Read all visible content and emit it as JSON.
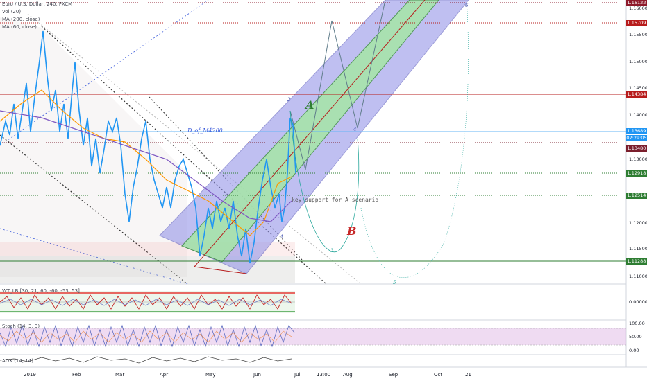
{
  "symbol": {
    "title": "Euro / U.S. Dollar, 240, FXCM",
    "indicators": [
      "Vol (20)",
      "MA (200, close)",
      "MA (60, close)"
    ]
  },
  "panes": {
    "wt": "WT_LB [30, 21, 60, -60, -53, 53]",
    "stoch": "Stoch (14, 3, 3)",
    "adx": "ADX (14, 14)"
  },
  "annotations": {
    "d_of_m": "D_of_M4200",
    "key_support": "key support for A scenario",
    "label_a": "A",
    "label_b": "B",
    "wave_2": "2",
    "wave_4a": "4",
    "wave_1": "1",
    "wave_3": "3",
    "wave_5": "5",
    "wave_6": "6"
  },
  "price_axis": {
    "ticks": [
      "1.16000",
      "1.15500",
      "1.15000",
      "1.14500",
      "1.14000",
      "1.13500",
      "1.13000",
      "1.12500",
      "1.12000",
      "1.11500",
      "1.11000"
    ],
    "badges": [
      {
        "label": "1.16122",
        "color": "#8e1a2b"
      },
      {
        "label": "1.15709",
        "color": "#b71c1c"
      },
      {
        "label": "1.14384",
        "color": "#b71c1c"
      },
      {
        "label": "1.13689",
        "color": "#2196f3"
      },
      {
        "label": "02:29:05",
        "color": "#2196f3"
      },
      {
        "label": "1.13480",
        "color": "#7b1f2d"
      },
      {
        "label": "1.12918",
        "color": "#2e7d32"
      },
      {
        "label": "1.12514",
        "color": "#2e7d32"
      },
      {
        "label": "1.11288",
        "color": "#2e7d32"
      }
    ],
    "wt_ticks": [
      "0.00000"
    ],
    "stoch_ticks": [
      "100.00",
      "50.00",
      "0.00"
    ]
  },
  "time_axis": [
    "2019",
    "Feb",
    "Mar",
    "Apr",
    "May",
    "Jun",
    "Jul",
    "13:00",
    "Aug",
    "Sep",
    "Oct",
    "21"
  ],
  "colors": {
    "price_line": "#2196f3",
    "ma60": "#ff9800",
    "ma200": "#7e57c2",
    "channel_outer": "#7e7ed6",
    "channel_inner": "#8fd98f",
    "resistance": "#b71c1c",
    "support": "#2e7d32"
  }
}
